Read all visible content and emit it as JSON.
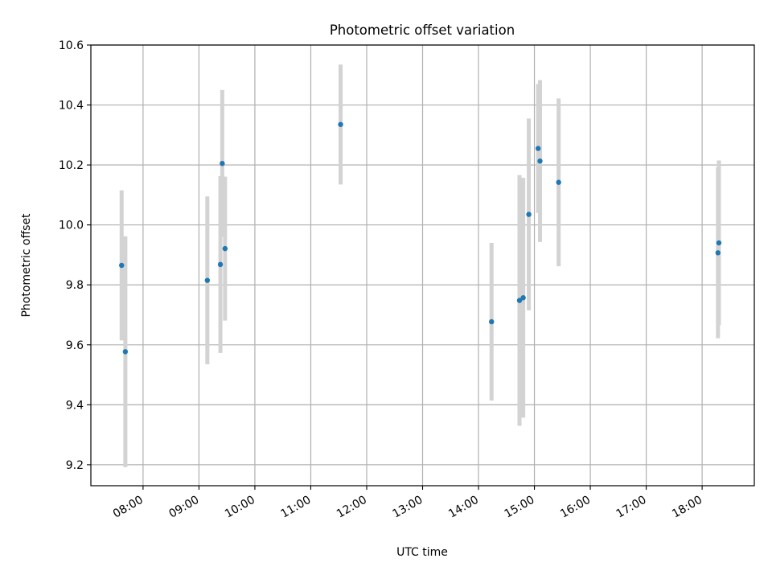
{
  "colors": {
    "point": "#1f77b4",
    "errorbar": "#d3d3d3",
    "grid": "#b0b0b0",
    "axes": "#000000"
  },
  "chart_data": {
    "type": "scatter",
    "title": "Photometric offset variation",
    "xlabel": "UTC time",
    "ylabel": "Photometric offset",
    "xlim": [
      "07:04",
      "18:56"
    ],
    "ylim": [
      9.13,
      10.6
    ],
    "grid": true,
    "x_ticks": [
      "08:00",
      "09:00",
      "10:00",
      "11:00",
      "12:00",
      "13:00",
      "14:00",
      "15:00",
      "16:00",
      "17:00",
      "18:00"
    ],
    "x_tick_labels": [
      "08:00",
      "09:00",
      "10:00",
      "11:00",
      "12:00",
      "13:00",
      "14:00",
      "15:00",
      "16:00",
      "17:00",
      "18:00"
    ],
    "y_ticks": [
      9.2,
      9.4,
      9.6,
      9.8,
      10.0,
      10.2,
      10.4,
      10.6
    ],
    "y_tick_labels": [
      "9.2",
      "9.4",
      "9.6",
      "9.8",
      "10.0",
      "10.2",
      "10.4",
      "10.6"
    ],
    "series": [
      {
        "points": [
          {
            "x": "07:37",
            "y": 9.865,
            "yerr": 0.25
          },
          {
            "x": "07:41",
            "y": 9.577,
            "yerr": 0.385
          },
          {
            "x": "09:09",
            "y": 9.815,
            "yerr": 0.28
          },
          {
            "x": "09:23",
            "y": 9.868,
            "yerr": 0.295
          },
          {
            "x": "09:25",
            "y": 10.205,
            "yerr": 0.245
          },
          {
            "x": "09:28",
            "y": 9.921,
            "yerr": 0.24
          },
          {
            "x": "11:32",
            "y": 10.335,
            "yerr": 0.2
          },
          {
            "x": "14:14",
            "y": 9.677,
            "yerr": 0.263
          },
          {
            "x": "14:44",
            "y": 9.748,
            "yerr": 0.418
          },
          {
            "x": "14:48",
            "y": 9.757,
            "yerr": 0.4
          },
          {
            "x": "14:54",
            "y": 10.035,
            "yerr": 0.32
          },
          {
            "x": "15:04",
            "y": 10.255,
            "yerr": 0.215
          },
          {
            "x": "15:06",
            "y": 10.213,
            "yerr": 0.27
          },
          {
            "x": "15:26",
            "y": 10.142,
            "yerr": 0.28
          },
          {
            "x": "18:17",
            "y": 9.907,
            "yerr": 0.285
          },
          {
            "x": "18:18",
            "y": 9.94,
            "yerr": 0.275
          }
        ]
      }
    ]
  }
}
